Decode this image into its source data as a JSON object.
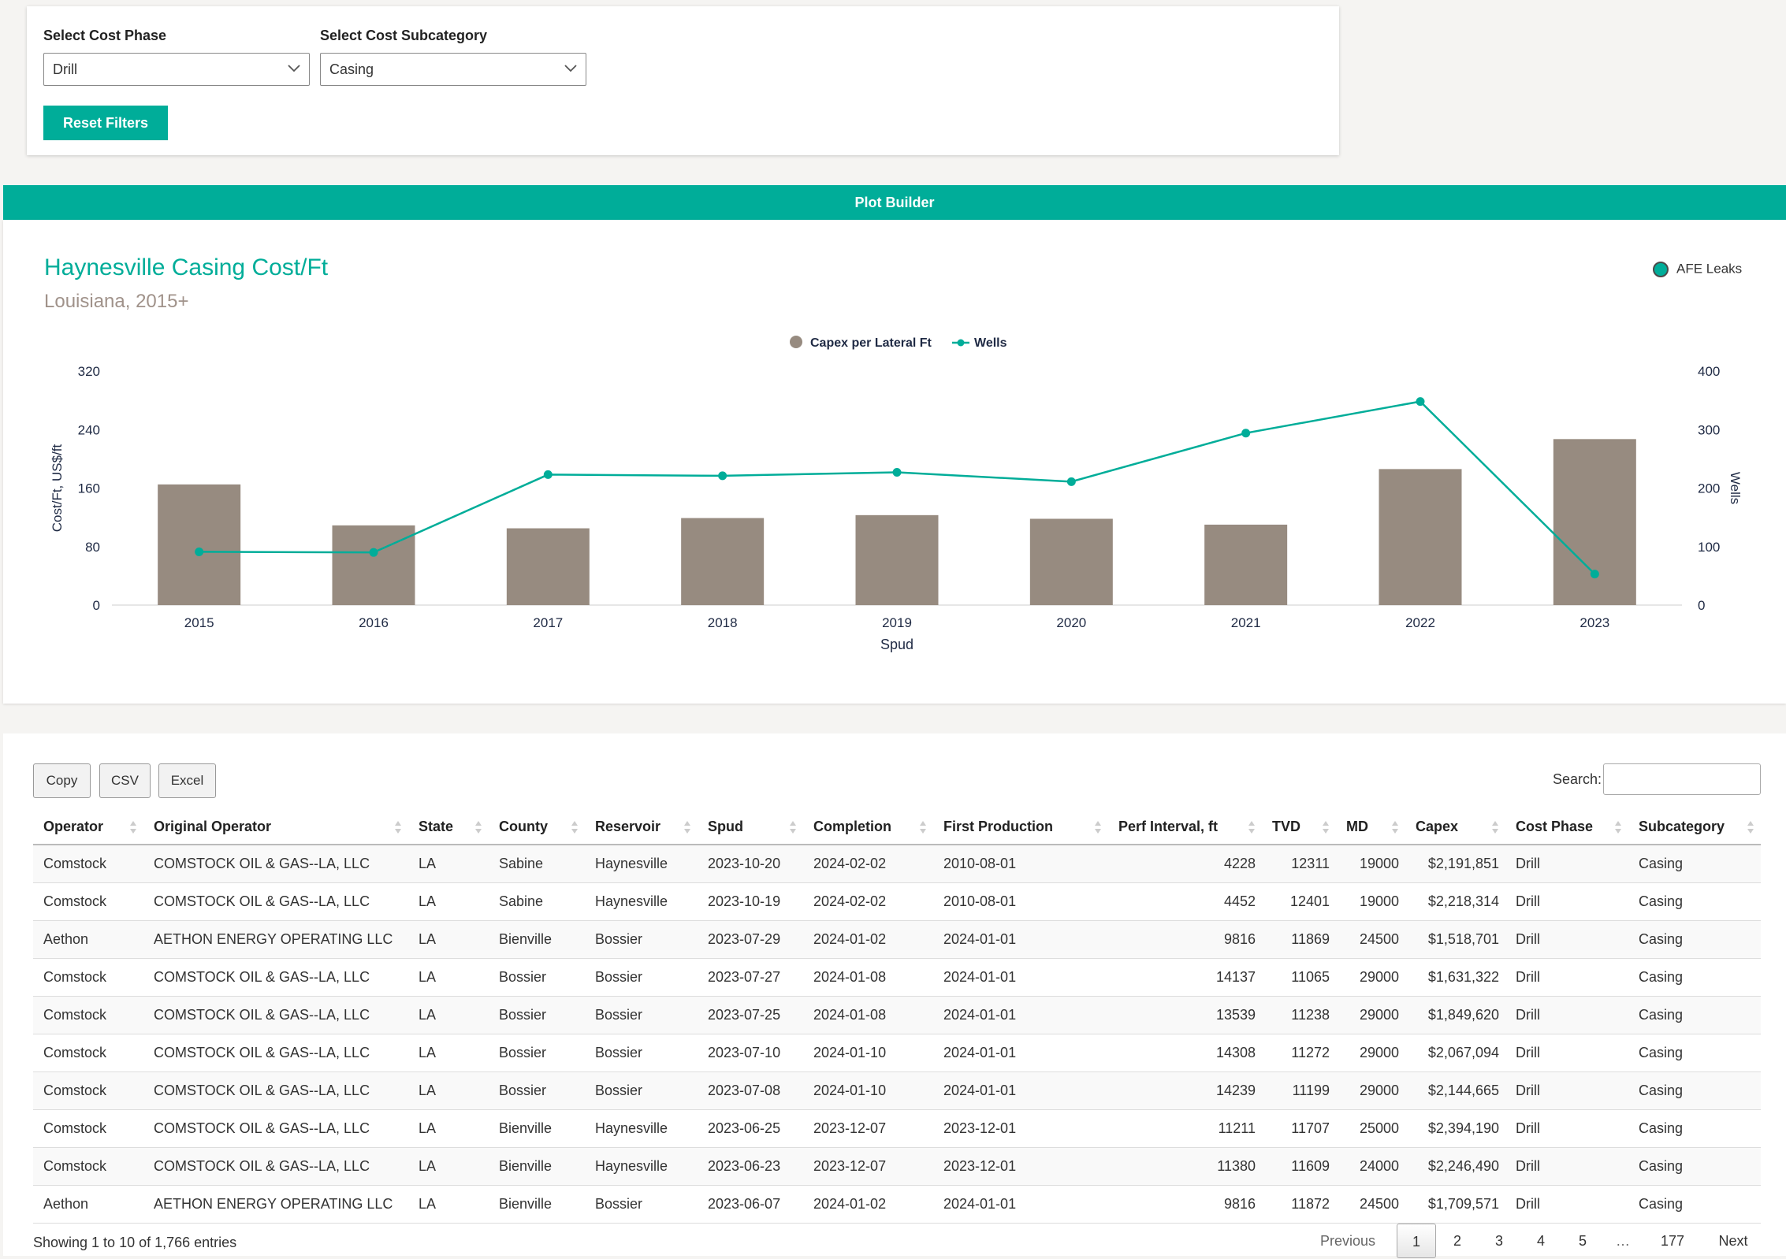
{
  "filters": {
    "cost_phase_label": "Select Cost Phase",
    "cost_phase_value": "Drill",
    "subcategory_label": "Select Cost Subcategory",
    "subcategory_value": "Casing",
    "reset_label": "Reset Filters"
  },
  "plot_builder_label": "Plot Builder",
  "chart_header": {
    "title": "Haynesville Casing Cost/Ft",
    "subtitle": "Louisiana, 2015+",
    "afe_legend": "AFE Leaks"
  },
  "colors": {
    "accent": "#00ad99",
    "bar": "#978b80",
    "axis_text": "#1f2a44"
  },
  "chart_data": {
    "type": "bar",
    "categories": [
      "2015",
      "2016",
      "2017",
      "2018",
      "2019",
      "2020",
      "2021",
      "2022",
      "2023"
    ],
    "series": [
      {
        "name": "Capex per Lateral Ft",
        "type": "bar",
        "axis": "left",
        "values": [
          165,
          109,
          105,
          119,
          123,
          118,
          110,
          186,
          227
        ]
      },
      {
        "name": "Wells",
        "type": "line",
        "axis": "right",
        "values": [
          91,
          90,
          223,
          221,
          227,
          211,
          294,
          348,
          53
        ]
      }
    ],
    "xlabel": "Spud",
    "ylabel": "Cost/Ft, US$/ft",
    "y2label": "Wells",
    "ylim": [
      0,
      320
    ],
    "y2lim": [
      0,
      400
    ],
    "yticks": [
      0,
      80,
      160,
      240,
      320
    ],
    "y2ticks": [
      0,
      100,
      200,
      300,
      400
    ],
    "legend_position": "top-center"
  },
  "table": {
    "buttons": [
      "Copy",
      "CSV",
      "Excel"
    ],
    "search_label": "Search:",
    "columns": [
      "Operator",
      "Original Operator",
      "State",
      "County",
      "Reservoir",
      "Spud",
      "Completion",
      "First Production",
      "Perf Interval, ft",
      "TVD",
      "MD",
      "Capex",
      "Cost Phase",
      "Subcategory"
    ],
    "rows": [
      [
        "Comstock",
        "COMSTOCK OIL & GAS--LA, LLC",
        "LA",
        "Sabine",
        "Haynesville",
        "2023-10-20",
        "2024-02-02",
        "2010-08-01",
        "4228",
        "12311",
        "19000",
        "$2,191,851",
        "Drill",
        "Casing"
      ],
      [
        "Comstock",
        "COMSTOCK OIL & GAS--LA, LLC",
        "LA",
        "Sabine",
        "Haynesville",
        "2023-10-19",
        "2024-02-02",
        "2010-08-01",
        "4452",
        "12401",
        "19000",
        "$2,218,314",
        "Drill",
        "Casing"
      ],
      [
        "Aethon",
        "AETHON ENERGY OPERATING LLC",
        "LA",
        "Bienville",
        "Bossier",
        "2023-07-29",
        "2024-01-02",
        "2024-01-01",
        "9816",
        "11869",
        "24500",
        "$1,518,701",
        "Drill",
        "Casing"
      ],
      [
        "Comstock",
        "COMSTOCK OIL & GAS--LA, LLC",
        "LA",
        "Bossier",
        "Bossier",
        "2023-07-27",
        "2024-01-08",
        "2024-01-01",
        "14137",
        "11065",
        "29000",
        "$1,631,322",
        "Drill",
        "Casing"
      ],
      [
        "Comstock",
        "COMSTOCK OIL & GAS--LA, LLC",
        "LA",
        "Bossier",
        "Bossier",
        "2023-07-25",
        "2024-01-08",
        "2024-01-01",
        "13539",
        "11238",
        "29000",
        "$1,849,620",
        "Drill",
        "Casing"
      ],
      [
        "Comstock",
        "COMSTOCK OIL & GAS--LA, LLC",
        "LA",
        "Bossier",
        "Bossier",
        "2023-07-10",
        "2024-01-10",
        "2024-01-01",
        "14308",
        "11272",
        "29000",
        "$2,067,094",
        "Drill",
        "Casing"
      ],
      [
        "Comstock",
        "COMSTOCK OIL & GAS--LA, LLC",
        "LA",
        "Bossier",
        "Bossier",
        "2023-07-08",
        "2024-01-10",
        "2024-01-01",
        "14239",
        "11199",
        "29000",
        "$2,144,665",
        "Drill",
        "Casing"
      ],
      [
        "Comstock",
        "COMSTOCK OIL & GAS--LA, LLC",
        "LA",
        "Bienville",
        "Haynesville",
        "2023-06-25",
        "2023-12-07",
        "2023-12-01",
        "11211",
        "11707",
        "25000",
        "$2,394,190",
        "Drill",
        "Casing"
      ],
      [
        "Comstock",
        "COMSTOCK OIL & GAS--LA, LLC",
        "LA",
        "Bienville",
        "Haynesville",
        "2023-06-23",
        "2023-12-07",
        "2023-12-01",
        "11380",
        "11609",
        "24000",
        "$2,246,490",
        "Drill",
        "Casing"
      ],
      [
        "Aethon",
        "AETHON ENERGY OPERATING LLC",
        "LA",
        "Bienville",
        "Bossier",
        "2023-06-07",
        "2024-01-02",
        "2024-01-01",
        "9816",
        "11872",
        "24500",
        "$1,709,571",
        "Drill",
        "Casing"
      ]
    ],
    "info": "Showing 1 to 10 of 1,766 entries",
    "pagination": {
      "previous": "Previous",
      "pages": [
        "1",
        "2",
        "3",
        "4",
        "5",
        "…",
        "177"
      ],
      "current": "1",
      "next": "Next"
    }
  }
}
